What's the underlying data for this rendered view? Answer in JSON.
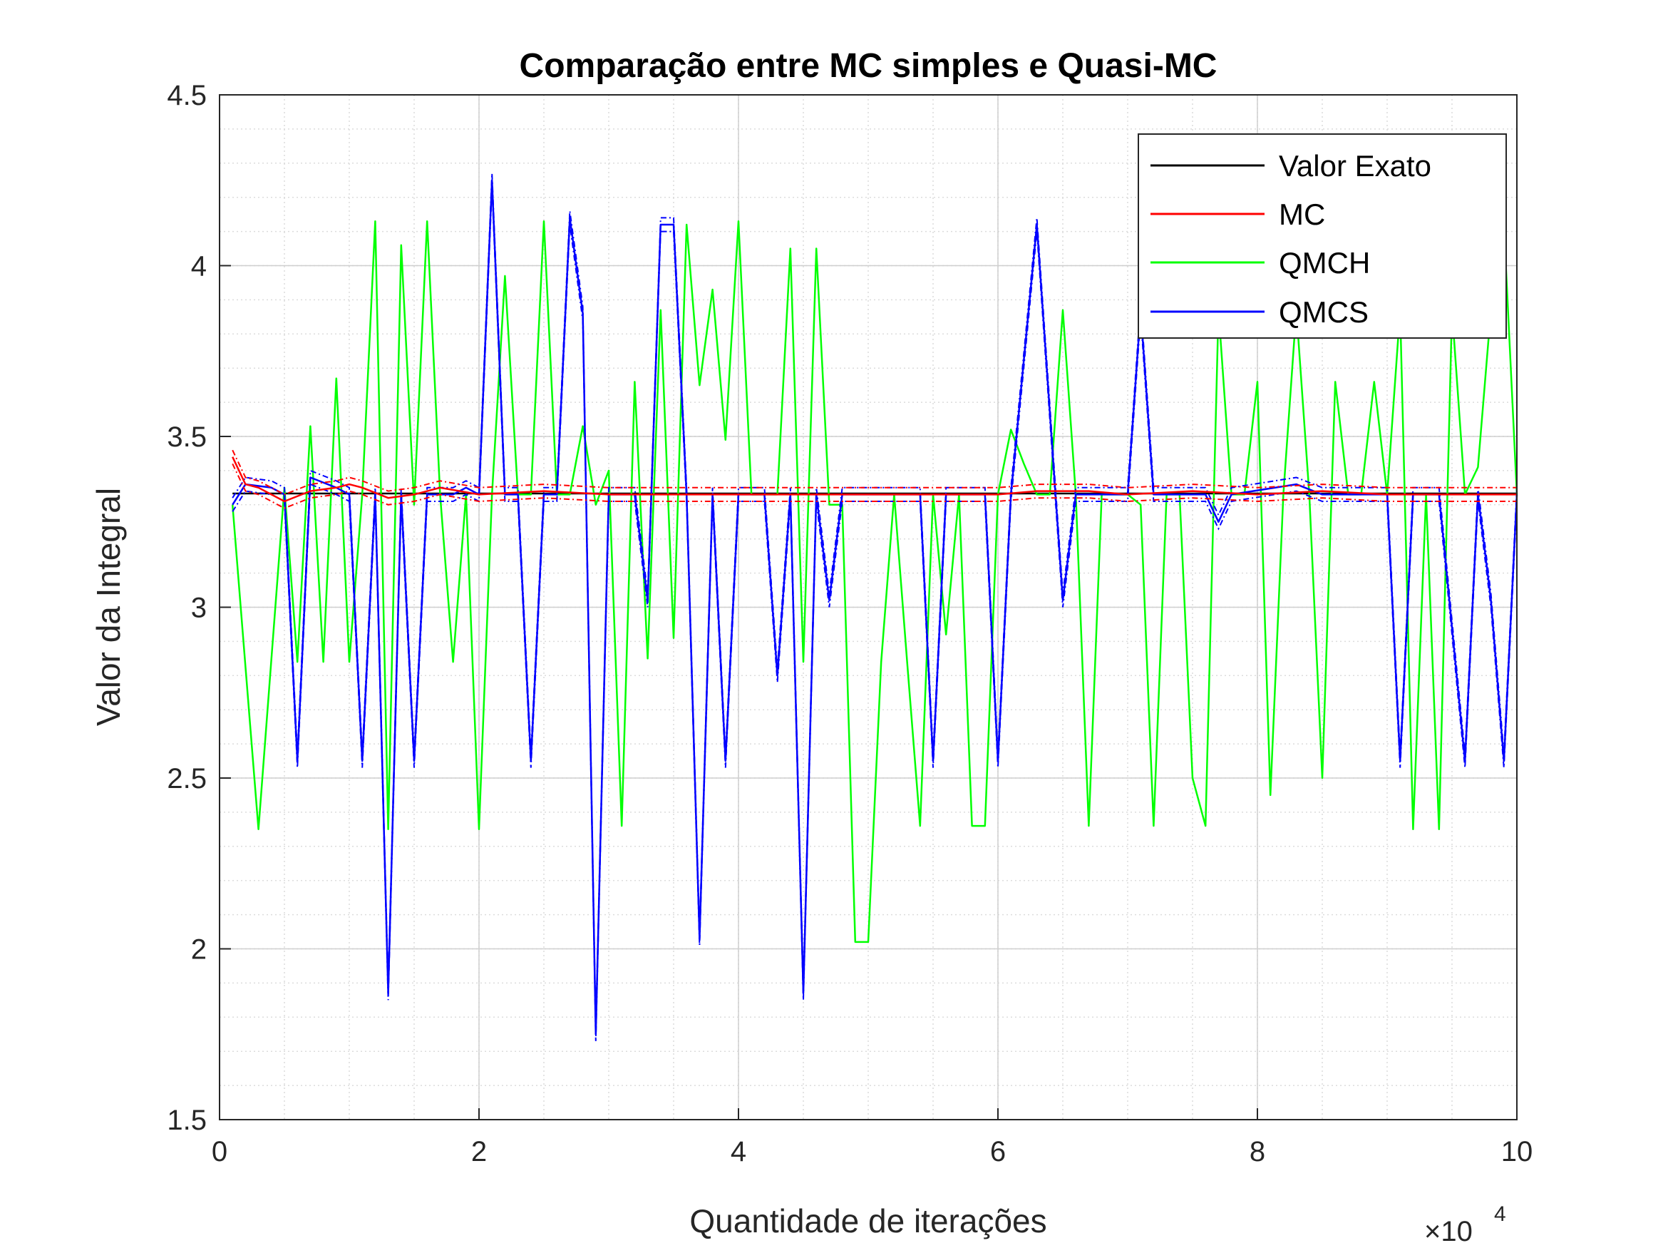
{
  "chart_data": {
    "type": "line",
    "title": "Comparação entre MC simples e Quasi-MC",
    "xlabel": "Quantidade de iterações",
    "ylabel": "Valor da Integral",
    "x_exponent_label": "×10",
    "x_exponent_power": "4",
    "xlim": [
      0,
      10
    ],
    "ylim": [
      1.5,
      4.5
    ],
    "x_ticks": [
      "0",
      "2",
      "4",
      "6",
      "8",
      "10"
    ],
    "y_ticks": [
      "1.5",
      "2",
      "2.5",
      "3",
      "3.5",
      "4",
      "4.5"
    ],
    "x_tick_values": [
      0,
      2,
      4,
      6,
      8,
      10
    ],
    "y_tick_values": [
      1.5,
      2,
      2.5,
      3,
      3.5,
      4,
      4.5
    ],
    "grid": true,
    "minor_grid": true,
    "legend_position": "top-right",
    "legend": [
      "Valor Exato",
      "MC",
      "QMCH",
      "QMCS"
    ],
    "series": [
      {
        "name": "Valor Exato",
        "color": "#000000",
        "x": [
          0.1,
          10
        ],
        "y": [
          3.333,
          3.333
        ]
      },
      {
        "name": "MC",
        "color": "#ff0000",
        "band": 0.02,
        "x": [
          0.1,
          0.2,
          0.3,
          0.5,
          0.7,
          0.9,
          1.0,
          1.1,
          1.3,
          1.5,
          1.7,
          2.0,
          2.5,
          3.0,
          3.5,
          4.0,
          4.5,
          5.0,
          5.5,
          6.0,
          6.3,
          6.7,
          7.0,
          7.5,
          8.0,
          8.5,
          9.0,
          9.5,
          10.0
        ],
        "y": [
          3.44,
          3.36,
          3.35,
          3.31,
          3.34,
          3.35,
          3.36,
          3.35,
          3.32,
          3.33,
          3.35,
          3.33,
          3.34,
          3.33,
          3.33,
          3.33,
          3.33,
          3.33,
          3.33,
          3.33,
          3.34,
          3.34,
          3.33,
          3.34,
          3.33,
          3.34,
          3.33,
          3.33,
          3.33
        ]
      },
      {
        "name": "QMCH",
        "color": "#00ff00",
        "x": [
          0.1,
          0.3,
          0.5,
          0.6,
          0.7,
          0.8,
          0.9,
          1.0,
          1.1,
          1.2,
          1.3,
          1.4,
          1.5,
          1.6,
          1.7,
          1.8,
          1.9,
          2.0,
          2.1,
          2.2,
          2.3,
          2.4,
          2.5,
          2.6,
          2.7,
          2.8,
          2.9,
          3.0,
          3.1,
          3.2,
          3.3,
          3.4,
          3.5,
          3.6,
          3.7,
          3.8,
          3.9,
          4.0,
          4.1,
          4.2,
          4.3,
          4.4,
          4.5,
          4.6,
          4.7,
          4.8,
          4.9,
          5.0,
          5.1,
          5.2,
          5.3,
          5.4,
          5.5,
          5.6,
          5.7,
          5.8,
          5.9,
          6.0,
          6.1,
          6.2,
          6.3,
          6.4,
          6.5,
          6.6,
          6.7,
          6.8,
          6.9,
          7.0,
          7.1,
          7.2,
          7.3,
          7.4,
          7.5,
          7.6,
          7.7,
          7.8,
          7.9,
          8.0,
          8.1,
          8.2,
          8.3,
          8.4,
          8.5,
          8.6,
          8.7,
          8.8,
          8.9,
          9.0,
          9.1,
          9.2,
          9.3,
          9.4,
          9.5,
          9.6,
          9.7,
          9.8,
          9.9,
          10.0
        ],
        "y": [
          3.3,
          2.35,
          3.35,
          2.84,
          3.53,
          2.84,
          3.67,
          2.84,
          3.33,
          4.13,
          2.35,
          4.06,
          3.3,
          4.13,
          3.33,
          2.84,
          3.33,
          2.35,
          3.33,
          3.97,
          3.33,
          3.33,
          4.13,
          3.33,
          3.33,
          3.53,
          3.3,
          3.4,
          2.36,
          3.66,
          2.85,
          3.87,
          2.91,
          4.12,
          3.65,
          3.93,
          3.49,
          4.13,
          3.33,
          3.33,
          3.33,
          4.05,
          2.84,
          4.05,
          3.3,
          3.3,
          2.02,
          2.02,
          2.84,
          3.33,
          2.84,
          2.36,
          3.33,
          2.92,
          3.33,
          2.36,
          2.36,
          3.33,
          3.52,
          3.42,
          3.33,
          3.33,
          3.87,
          3.33,
          2.36,
          3.33,
          3.33,
          3.33,
          3.3,
          2.36,
          3.33,
          3.33,
          2.5,
          2.36,
          3.87,
          3.33,
          3.33,
          3.66,
          2.45,
          3.33,
          3.87,
          3.33,
          2.5,
          3.66,
          3.33,
          3.33,
          3.66,
          3.33,
          3.87,
          2.35,
          3.33,
          2.35,
          3.87,
          3.33,
          3.41,
          3.87,
          4.12,
          3.33
        ]
      },
      {
        "name": "QMCS",
        "color": "#0000ff",
        "band": 0.02,
        "x": [
          0.1,
          0.2,
          0.4,
          0.5,
          0.6,
          0.7,
          0.9,
          1.0,
          1.1,
          1.2,
          1.3,
          1.4,
          1.5,
          1.6,
          1.8,
          1.9,
          2.0,
          2.1,
          2.2,
          2.3,
          2.4,
          2.5,
          2.6,
          2.7,
          2.8,
          2.9,
          3.0,
          3.2,
          3.3,
          3.4,
          3.5,
          3.6,
          3.7,
          3.8,
          3.9,
          4.0,
          4.2,
          4.3,
          4.4,
          4.5,
          4.6,
          4.7,
          4.8,
          5.0,
          5.4,
          5.5,
          5.6,
          5.9,
          6.0,
          6.1,
          6.3,
          6.5,
          6.6,
          6.8,
          7.0,
          7.1,
          7.2,
          7.6,
          7.7,
          7.8,
          8.3,
          8.5,
          9.0,
          9.1,
          9.2,
          9.3,
          9.4,
          9.6,
          9.7,
          9.8,
          9.9,
          10.0
        ],
        "y": [
          3.3,
          3.36,
          3.35,
          3.33,
          2.55,
          3.38,
          3.35,
          3.33,
          2.55,
          3.33,
          1.87,
          3.33,
          2.55,
          3.33,
          3.33,
          3.35,
          3.33,
          4.25,
          3.33,
          3.33,
          2.55,
          3.33,
          3.33,
          4.14,
          3.86,
          1.75,
          3.33,
          3.33,
          3.02,
          4.12,
          4.12,
          3.33,
          2.03,
          3.33,
          2.55,
          3.33,
          3.33,
          2.8,
          3.33,
          1.87,
          3.33,
          3.02,
          3.33,
          3.33,
          3.33,
          2.55,
          3.33,
          3.33,
          2.55,
          3.33,
          4.12,
          3.02,
          3.33,
          3.33,
          3.33,
          3.87,
          3.33,
          3.33,
          3.25,
          3.33,
          3.36,
          3.33,
          3.33,
          2.55,
          3.33,
          3.33,
          3.33,
          2.55,
          3.33,
          3.02,
          2.55,
          3.33
        ]
      }
    ]
  }
}
